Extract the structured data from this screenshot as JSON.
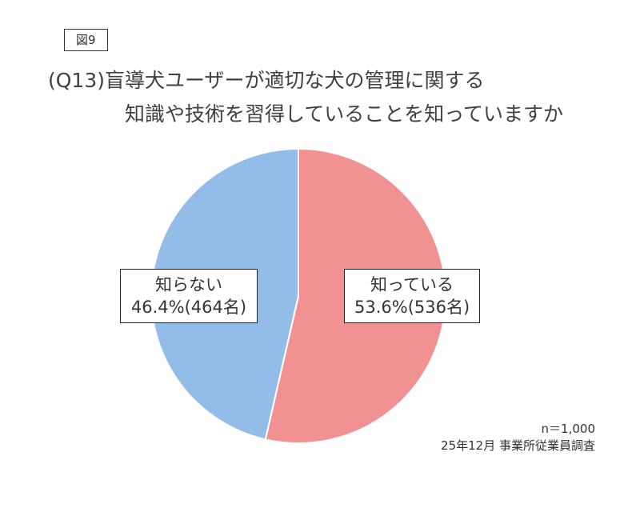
{
  "figure_label": "図9",
  "title": {
    "line1": "(Q13)盲導犬ユーザーが適切な犬の管理に関する",
    "line2": "知識や技術を習得していることを知っていますか"
  },
  "chart_data": {
    "type": "pie",
    "start_angle_deg": 0,
    "direction": "clockwise",
    "slices": [
      {
        "name": "知っている",
        "percent": 53.6,
        "count": 536,
        "value_label": "53.6%(536名)",
        "color": "#F29191"
      },
      {
        "name": "知らない",
        "percent": 46.4,
        "count": 464,
        "value_label": "46.4%(464名)",
        "color": "#93BDE8"
      }
    ]
  },
  "footnote": {
    "sample": "n＝1,000",
    "source": "25年12月 事業所従業員調査"
  }
}
